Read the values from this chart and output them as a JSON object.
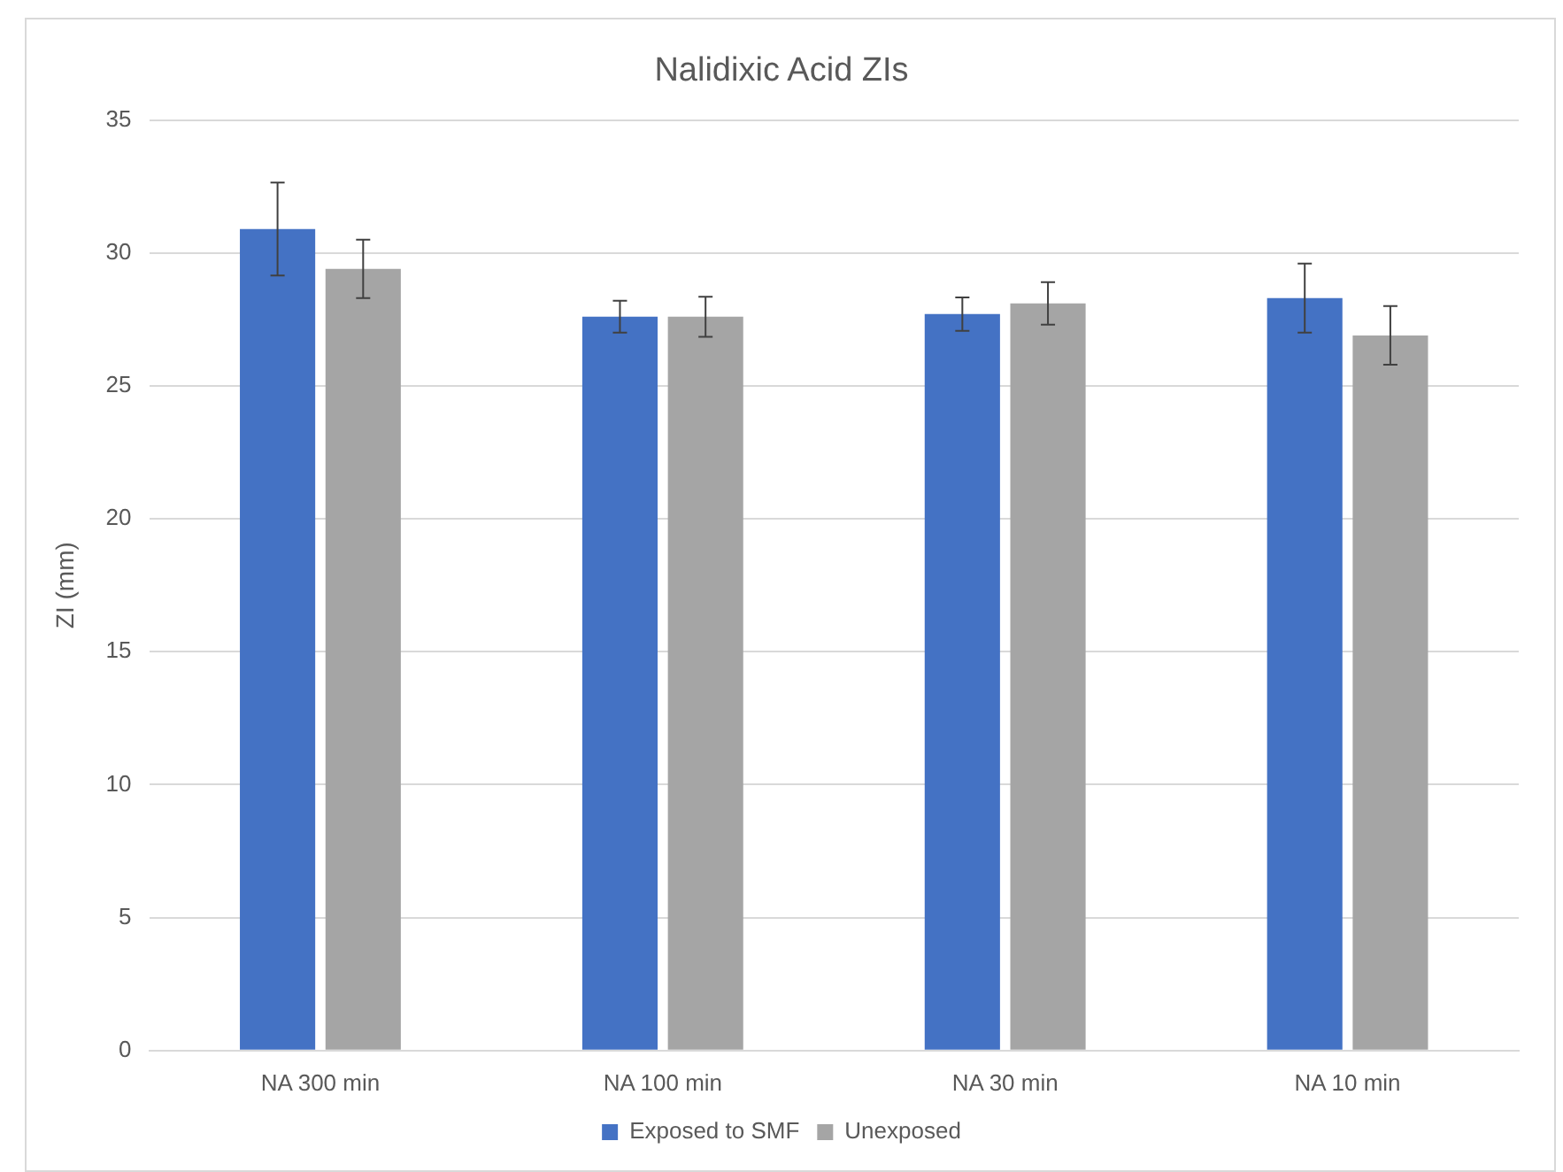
{
  "chart_data": {
    "type": "bar",
    "title": "Nalidixic Acid ZIs",
    "ylabel": "ZI (mm)",
    "categories": [
      "NA 300 min",
      "NA 100 min",
      "NA 30 min",
      "NA 10 min"
    ],
    "series": [
      {
        "name": "Exposed to SMF",
        "color": "#4472c4",
        "values": [
          30.9,
          27.6,
          27.7,
          28.3
        ],
        "errors": [
          1.75,
          0.6,
          0.63,
          1.3
        ]
      },
      {
        "name": "Unexposed",
        "color": "#a5a5a5",
        "values": [
          29.4,
          27.6,
          28.1,
          26.9
        ],
        "errors": [
          1.1,
          0.75,
          0.8,
          1.1
        ]
      }
    ],
    "ylim": [
      0,
      35
    ],
    "yticks": [
      0,
      5,
      10,
      15,
      20,
      25,
      30,
      35
    ],
    "grid": "y",
    "legend": "bottom"
  }
}
